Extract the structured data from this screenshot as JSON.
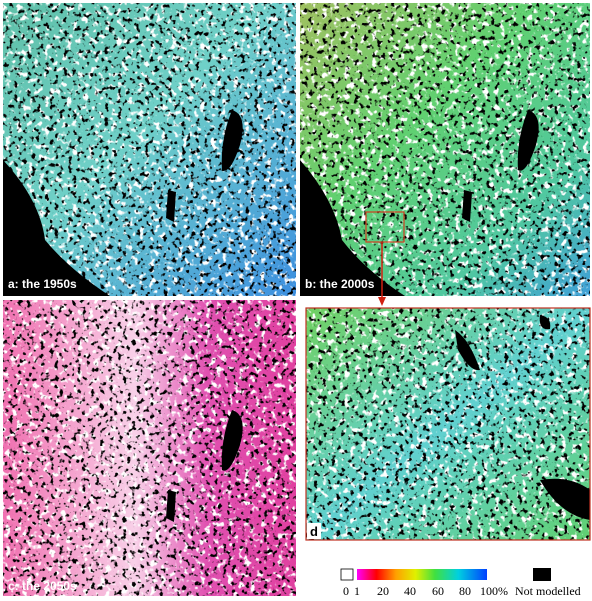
{
  "panels": [
    {
      "label": "a: the 1950s"
    },
    {
      "label": "b: the 2000s"
    },
    {
      "label": "c: the 2050s"
    },
    {
      "label": "d"
    }
  ],
  "legend": {
    "ticks": [
      "0",
      "1",
      "20",
      "40",
      "60",
      "80",
      "100%"
    ],
    "not_modelled": "Not modelled"
  }
}
